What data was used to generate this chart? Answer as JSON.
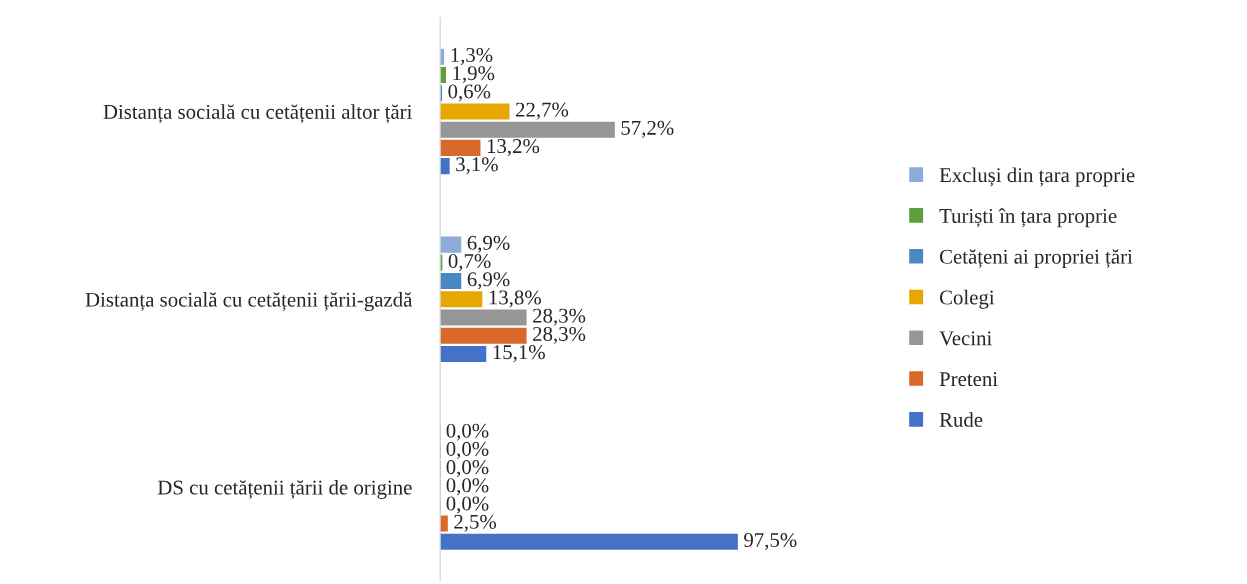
{
  "chart_data": {
    "type": "bar",
    "orientation": "horizontal",
    "legend": "right",
    "grid": false,
    "categories": [
      "Distanța socială cu cetățenii altor țări",
      "Distanța socială cu cetățenii țării-gazdă",
      "DS cu cetățenii țării de origine"
    ],
    "series": [
      {
        "name": "Excluși din țara proprie",
        "color": "#8eaadb",
        "values": [
          1.3,
          6.9,
          0.0
        ],
        "value_labels": [
          "1,3%",
          "6,9%",
          "0,0%"
        ]
      },
      {
        "name": "Turiști în țara proprie",
        "color": "#5fa03c",
        "values": [
          1.9,
          0.7,
          0.0
        ],
        "value_labels": [
          "1,9%",
          "0,7%",
          "0,0%"
        ]
      },
      {
        "name": "Cetățeni ai propriei țări",
        "color": "#4a88c4",
        "values": [
          0.6,
          6.9,
          0.0
        ],
        "value_labels": [
          "0,6%",
          "6,9%",
          "0,0%"
        ]
      },
      {
        "name": "Colegi",
        "color": "#e6a800",
        "values": [
          22.7,
          13.8,
          0.0
        ],
        "value_labels": [
          "22,7%",
          "13,8%",
          "0,0%"
        ]
      },
      {
        "name": "Vecini",
        "color": "#969696",
        "values": [
          57.2,
          28.3,
          0.0
        ],
        "value_labels": [
          "57,2%",
          "28,3%",
          "0,0%"
        ]
      },
      {
        "name": "Preteni",
        "color": "#d9692a",
        "values": [
          13.2,
          28.3,
          2.5
        ],
        "value_labels": [
          "13,2%",
          "28,3%",
          "2,5%"
        ]
      },
      {
        "name": "Rude",
        "color": "#4472c4",
        "values": [
          3.1,
          15.1,
          97.5
        ],
        "value_labels": [
          "3,1%",
          "15,1%",
          "97,5%"
        ]
      }
    ]
  }
}
